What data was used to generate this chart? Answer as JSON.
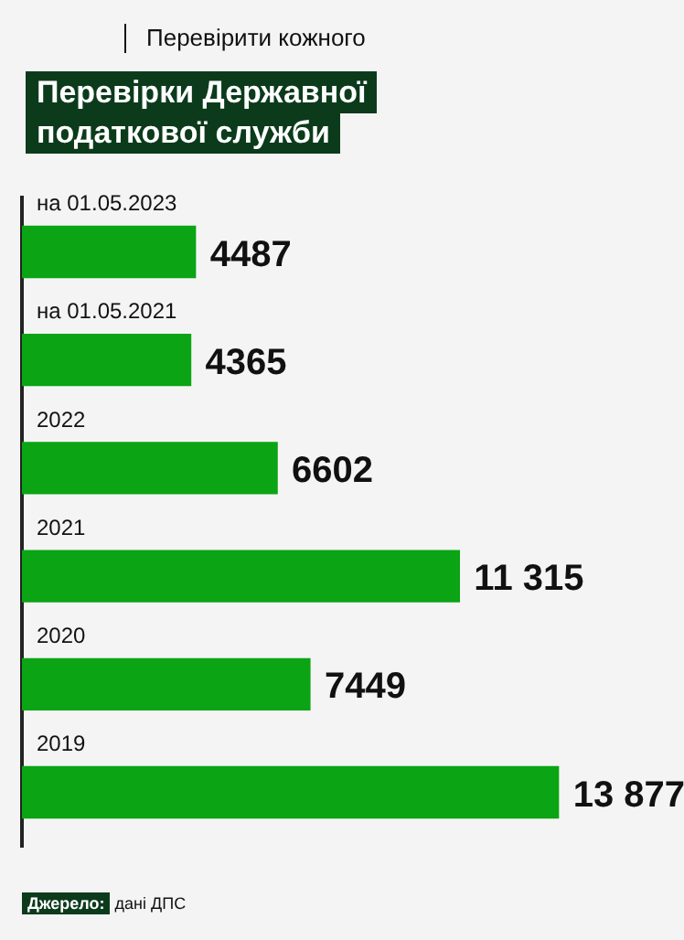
{
  "chart_data": {
    "type": "bar",
    "orientation": "horizontal",
    "title": "Перевірки Державної податкової служби",
    "subtitle": "Перевірити кожного",
    "categories": [
      "на 01.05.2023",
      "на 01.05.2021",
      "2022",
      "2021",
      "2020",
      "2019"
    ],
    "values": [
      4487,
      4365,
      6602,
      11315,
      7449,
      13877
    ],
    "value_labels": [
      "4487",
      "4365",
      "6602",
      "11 315",
      "7449",
      "13 877"
    ],
    "color": "#0aa414",
    "legend": false,
    "annotations": [
      "Джерело: дані ДПС"
    ]
  }
}
